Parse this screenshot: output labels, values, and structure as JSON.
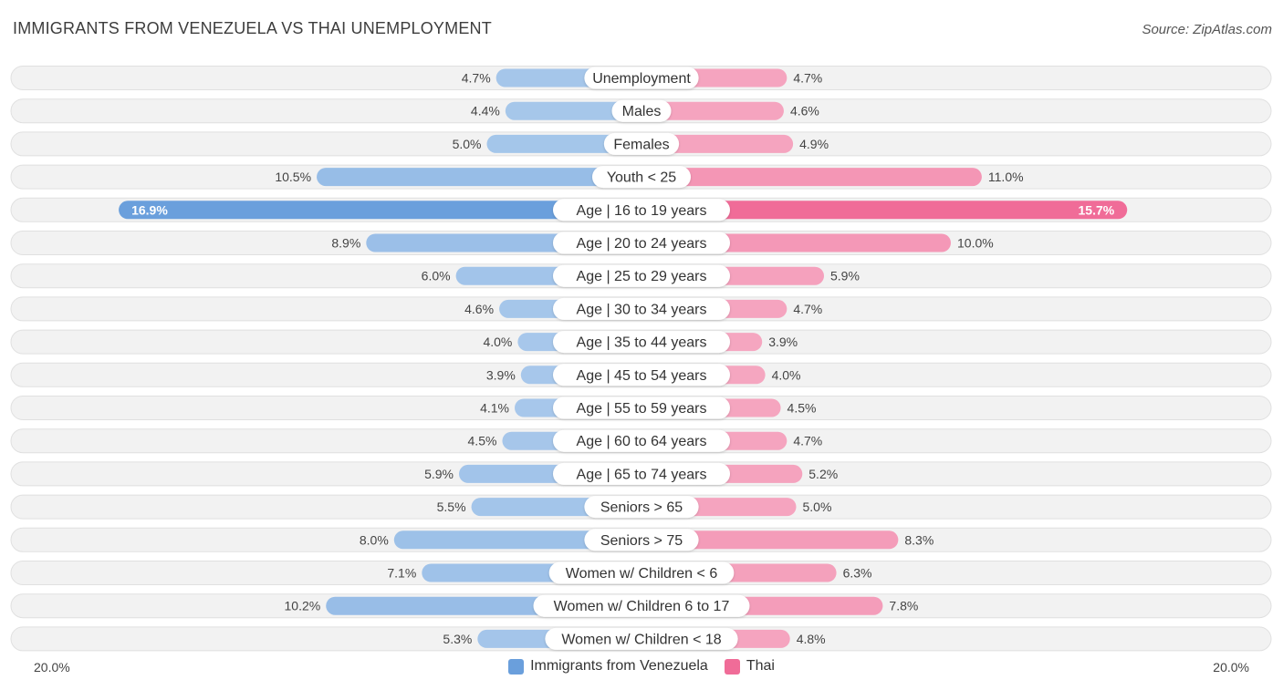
{
  "title": "IMMIGRANTS FROM VENEZUELA VS THAI UNEMPLOYMENT",
  "source": "Source: ZipAtlas.com",
  "colors": {
    "left_light": "#a8c8eb",
    "left_strong": "#6a9fdc",
    "right_light": "#f5a7c1",
    "right_strong": "#f06c98"
  },
  "chart_data": {
    "type": "bar",
    "orientation": "diverging-horizontal",
    "title": "IMMIGRANTS FROM VENEZUELA VS THAI UNEMPLOYMENT",
    "axis_min_label": "20.0%",
    "axis_max_label": "20.0%",
    "xlim": [
      -20,
      20
    ],
    "categories": [
      "Unemployment",
      "Males",
      "Females",
      "Youth < 25",
      "Age | 16 to 19 years",
      "Age | 20 to 24 years",
      "Age | 25 to 29 years",
      "Age | 30 to 34 years",
      "Age | 35 to 44 years",
      "Age | 45 to 54 years",
      "Age | 55 to 59 years",
      "Age | 60 to 64 years",
      "Age | 65 to 74 years",
      "Seniors > 65",
      "Seniors > 75",
      "Women w/ Children < 6",
      "Women w/ Children 6 to 17",
      "Women w/ Children < 18"
    ],
    "series": [
      {
        "name": "Immigrants from Venezuela",
        "values": [
          4.7,
          4.4,
          5.0,
          10.5,
          16.9,
          8.9,
          6.0,
          4.6,
          4.0,
          3.9,
          4.1,
          4.5,
          5.9,
          5.5,
          8.0,
          7.1,
          10.2,
          5.3
        ],
        "labels": [
          "4.7%",
          "4.4%",
          "5.0%",
          "10.5%",
          "16.9%",
          "8.9%",
          "6.0%",
          "4.6%",
          "4.0%",
          "3.9%",
          "4.1%",
          "4.5%",
          "5.9%",
          "5.5%",
          "8.0%",
          "7.1%",
          "10.2%",
          "5.3%"
        ]
      },
      {
        "name": "Thai",
        "values": [
          4.7,
          4.6,
          4.9,
          11.0,
          15.7,
          10.0,
          5.9,
          4.7,
          3.9,
          4.0,
          4.5,
          4.7,
          5.2,
          5.0,
          8.3,
          6.3,
          7.8,
          4.8
        ],
        "labels": [
          "4.7%",
          "4.6%",
          "4.9%",
          "11.0%",
          "15.7%",
          "10.0%",
          "5.9%",
          "4.7%",
          "3.9%",
          "4.0%",
          "4.5%",
          "4.7%",
          "5.2%",
          "5.0%",
          "8.3%",
          "6.3%",
          "7.8%",
          "4.8%"
        ]
      }
    ],
    "legend": [
      "Immigrants from Venezuela",
      "Thai"
    ]
  }
}
